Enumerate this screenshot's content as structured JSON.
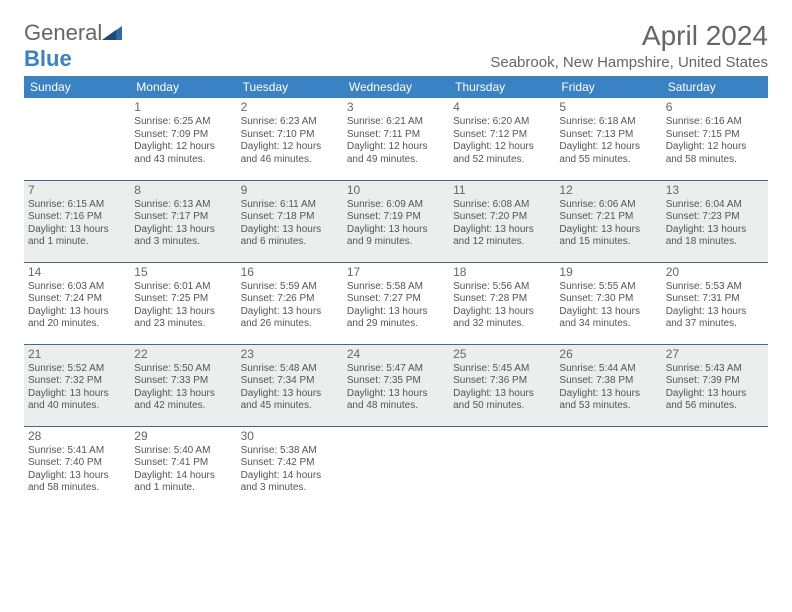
{
  "logo": {
    "textA": "General",
    "textB": "Blue"
  },
  "title": "April 2024",
  "location": "Seabrook, New Hampshire, United States",
  "headers": [
    "Sunday",
    "Monday",
    "Tuesday",
    "Wednesday",
    "Thursday",
    "Friday",
    "Saturday"
  ],
  "colors": {
    "header_bg": "#3b82c4",
    "shade_bg": "#eceded",
    "border": "#3b6a94"
  },
  "weeks": [
    {
      "shade": false,
      "days": [
        {
          "n": "",
          "lines": []
        },
        {
          "n": "1",
          "lines": [
            "Sunrise: 6:25 AM",
            "Sunset: 7:09 PM",
            "Daylight: 12 hours",
            "and 43 minutes."
          ]
        },
        {
          "n": "2",
          "lines": [
            "Sunrise: 6:23 AM",
            "Sunset: 7:10 PM",
            "Daylight: 12 hours",
            "and 46 minutes."
          ]
        },
        {
          "n": "3",
          "lines": [
            "Sunrise: 6:21 AM",
            "Sunset: 7:11 PM",
            "Daylight: 12 hours",
            "and 49 minutes."
          ]
        },
        {
          "n": "4",
          "lines": [
            "Sunrise: 6:20 AM",
            "Sunset: 7:12 PM",
            "Daylight: 12 hours",
            "and 52 minutes."
          ]
        },
        {
          "n": "5",
          "lines": [
            "Sunrise: 6:18 AM",
            "Sunset: 7:13 PM",
            "Daylight: 12 hours",
            "and 55 minutes."
          ]
        },
        {
          "n": "6",
          "lines": [
            "Sunrise: 6:16 AM",
            "Sunset: 7:15 PM",
            "Daylight: 12 hours",
            "and 58 minutes."
          ]
        }
      ]
    },
    {
      "shade": true,
      "days": [
        {
          "n": "7",
          "lines": [
            "Sunrise: 6:15 AM",
            "Sunset: 7:16 PM",
            "Daylight: 13 hours",
            "and 1 minute."
          ]
        },
        {
          "n": "8",
          "lines": [
            "Sunrise: 6:13 AM",
            "Sunset: 7:17 PM",
            "Daylight: 13 hours",
            "and 3 minutes."
          ]
        },
        {
          "n": "9",
          "lines": [
            "Sunrise: 6:11 AM",
            "Sunset: 7:18 PM",
            "Daylight: 13 hours",
            "and 6 minutes."
          ]
        },
        {
          "n": "10",
          "lines": [
            "Sunrise: 6:09 AM",
            "Sunset: 7:19 PM",
            "Daylight: 13 hours",
            "and 9 minutes."
          ]
        },
        {
          "n": "11",
          "lines": [
            "Sunrise: 6:08 AM",
            "Sunset: 7:20 PM",
            "Daylight: 13 hours",
            "and 12 minutes."
          ]
        },
        {
          "n": "12",
          "lines": [
            "Sunrise: 6:06 AM",
            "Sunset: 7:21 PM",
            "Daylight: 13 hours",
            "and 15 minutes."
          ]
        },
        {
          "n": "13",
          "lines": [
            "Sunrise: 6:04 AM",
            "Sunset: 7:23 PM",
            "Daylight: 13 hours",
            "and 18 minutes."
          ]
        }
      ]
    },
    {
      "shade": false,
      "days": [
        {
          "n": "14",
          "lines": [
            "Sunrise: 6:03 AM",
            "Sunset: 7:24 PM",
            "Daylight: 13 hours",
            "and 20 minutes."
          ]
        },
        {
          "n": "15",
          "lines": [
            "Sunrise: 6:01 AM",
            "Sunset: 7:25 PM",
            "Daylight: 13 hours",
            "and 23 minutes."
          ]
        },
        {
          "n": "16",
          "lines": [
            "Sunrise: 5:59 AM",
            "Sunset: 7:26 PM",
            "Daylight: 13 hours",
            "and 26 minutes."
          ]
        },
        {
          "n": "17",
          "lines": [
            "Sunrise: 5:58 AM",
            "Sunset: 7:27 PM",
            "Daylight: 13 hours",
            "and 29 minutes."
          ]
        },
        {
          "n": "18",
          "lines": [
            "Sunrise: 5:56 AM",
            "Sunset: 7:28 PM",
            "Daylight: 13 hours",
            "and 32 minutes."
          ]
        },
        {
          "n": "19",
          "lines": [
            "Sunrise: 5:55 AM",
            "Sunset: 7:30 PM",
            "Daylight: 13 hours",
            "and 34 minutes."
          ]
        },
        {
          "n": "20",
          "lines": [
            "Sunrise: 5:53 AM",
            "Sunset: 7:31 PM",
            "Daylight: 13 hours",
            "and 37 minutes."
          ]
        }
      ]
    },
    {
      "shade": true,
      "days": [
        {
          "n": "21",
          "lines": [
            "Sunrise: 5:52 AM",
            "Sunset: 7:32 PM",
            "Daylight: 13 hours",
            "and 40 minutes."
          ]
        },
        {
          "n": "22",
          "lines": [
            "Sunrise: 5:50 AM",
            "Sunset: 7:33 PM",
            "Daylight: 13 hours",
            "and 42 minutes."
          ]
        },
        {
          "n": "23",
          "lines": [
            "Sunrise: 5:48 AM",
            "Sunset: 7:34 PM",
            "Daylight: 13 hours",
            "and 45 minutes."
          ]
        },
        {
          "n": "24",
          "lines": [
            "Sunrise: 5:47 AM",
            "Sunset: 7:35 PM",
            "Daylight: 13 hours",
            "and 48 minutes."
          ]
        },
        {
          "n": "25",
          "lines": [
            "Sunrise: 5:45 AM",
            "Sunset: 7:36 PM",
            "Daylight: 13 hours",
            "and 50 minutes."
          ]
        },
        {
          "n": "26",
          "lines": [
            "Sunrise: 5:44 AM",
            "Sunset: 7:38 PM",
            "Daylight: 13 hours",
            "and 53 minutes."
          ]
        },
        {
          "n": "27",
          "lines": [
            "Sunrise: 5:43 AM",
            "Sunset: 7:39 PM",
            "Daylight: 13 hours",
            "and 56 minutes."
          ]
        }
      ]
    },
    {
      "shade": false,
      "days": [
        {
          "n": "28",
          "lines": [
            "Sunrise: 5:41 AM",
            "Sunset: 7:40 PM",
            "Daylight: 13 hours",
            "and 58 minutes."
          ]
        },
        {
          "n": "29",
          "lines": [
            "Sunrise: 5:40 AM",
            "Sunset: 7:41 PM",
            "Daylight: 14 hours",
            "and 1 minute."
          ]
        },
        {
          "n": "30",
          "lines": [
            "Sunrise: 5:38 AM",
            "Sunset: 7:42 PM",
            "Daylight: 14 hours",
            "and 3 minutes."
          ]
        },
        {
          "n": "",
          "lines": []
        },
        {
          "n": "",
          "lines": []
        },
        {
          "n": "",
          "lines": []
        },
        {
          "n": "",
          "lines": []
        }
      ]
    }
  ]
}
